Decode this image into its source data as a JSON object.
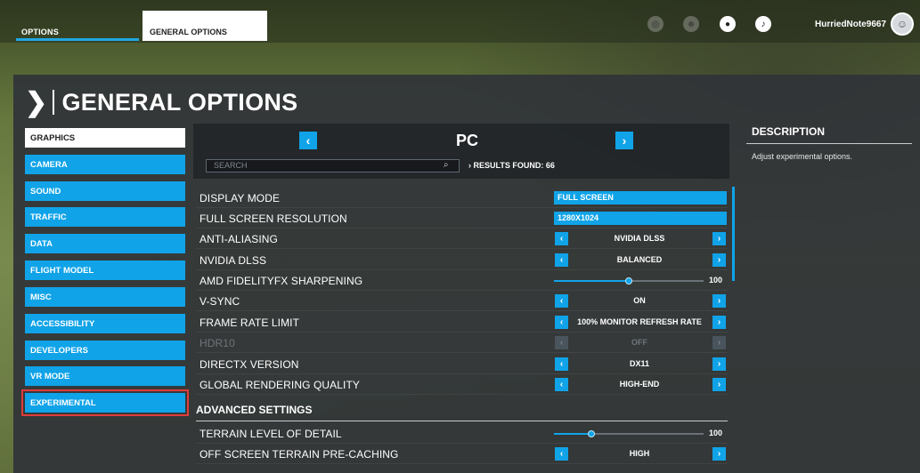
{
  "topbar": {
    "tabs": [
      {
        "label": "OPTIONS",
        "active": true
      },
      {
        "label": "GENERAL OPTIONS"
      }
    ],
    "icons": [
      "achievements-icon",
      "group-icon",
      "profile-icon",
      "notification-icon"
    ],
    "username": "HurriedNote9667"
  },
  "page_title": "GENERAL OPTIONS",
  "sidebar": {
    "items": [
      {
        "label": "GRAPHICS",
        "active": true
      },
      {
        "label": "CAMERA"
      },
      {
        "label": "SOUND"
      },
      {
        "label": "TRAFFIC"
      },
      {
        "label": "DATA"
      },
      {
        "label": "FLIGHT MODEL"
      },
      {
        "label": "MISC"
      },
      {
        "label": "ACCESSIBILITY"
      },
      {
        "label": "DEVELOPERS"
      },
      {
        "label": "VR MODE"
      },
      {
        "label": "EXPERIMENTAL",
        "highlighted": true
      }
    ]
  },
  "header": {
    "platform": "PC",
    "search_placeholder": "SEARCH",
    "results": "RESULTS FOUND: 66"
  },
  "settings": [
    {
      "label": "DISPLAY MODE",
      "type": "dropdown",
      "value": "FULL SCREEN"
    },
    {
      "label": "FULL SCREEN RESOLUTION",
      "type": "dropdown",
      "value": "1280X1024"
    },
    {
      "label": "ANTI-ALIASING",
      "type": "selector",
      "value": "NVIDIA DLSS"
    },
    {
      "label": "NVIDIA DLSS",
      "type": "selector",
      "value": "BALANCED"
    },
    {
      "label": "AMD FIDELITYFX SHARPENING",
      "type": "slider",
      "value": "100",
      "fill_fraction": 0.5
    },
    {
      "label": "V-SYNC",
      "type": "selector",
      "value": "ON"
    },
    {
      "label": "FRAME RATE LIMIT",
      "type": "selector",
      "value": "100% MONITOR REFRESH RATE"
    },
    {
      "label": "HDR10",
      "type": "selector",
      "value": "OFF",
      "disabled": true
    },
    {
      "label": "DIRECTX VERSION",
      "type": "selector",
      "value": "DX11"
    },
    {
      "label": "GLOBAL RENDERING QUALITY",
      "type": "selector",
      "value": "HIGH-END"
    }
  ],
  "advanced": {
    "title": "ADVANCED SETTINGS",
    "settings": [
      {
        "label": "TERRAIN LEVEL OF DETAIL",
        "type": "slider",
        "value": "100",
        "fill_fraction": 0.25
      },
      {
        "label": "OFF SCREEN TERRAIN PRE-CACHING",
        "type": "selector",
        "value": "HIGH"
      }
    ]
  },
  "description": {
    "title": "DESCRIPTION",
    "text": "Adjust experimental options."
  },
  "colors": {
    "accent": "#10a3e8",
    "highlight_outline": "#e23b3b",
    "panel": "#303438"
  }
}
